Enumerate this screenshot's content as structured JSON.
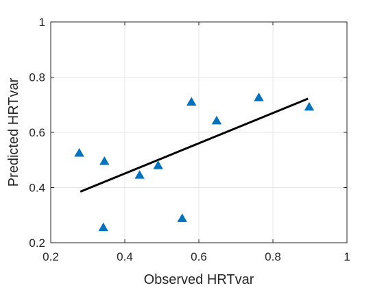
{
  "chart_data": {
    "type": "scatter",
    "title": "",
    "xlabel": "Observed HRTvar",
    "ylabel": "Predicted HRTvar",
    "xlim": [
      0.2,
      1
    ],
    "ylim": [
      0.2,
      1
    ],
    "xticks": [
      "0.2",
      "0.4",
      "0.6",
      "0.8",
      "1"
    ],
    "yticks": [
      "0.2",
      "0.4",
      "0.6",
      "0.8",
      "1"
    ],
    "grid": true,
    "marker": "triangle",
    "colors": {
      "marker": "#0072BD",
      "fit_line": "#000000",
      "grid": "#e6e6e6",
      "axis": "#262626"
    },
    "series": [
      {
        "x": [
          0.277,
          0.345,
          0.342,
          0.44,
          0.49,
          0.555,
          0.58,
          0.648,
          0.762,
          0.898
        ],
        "y": [
          0.525,
          0.495,
          0.255,
          0.445,
          0.48,
          0.288,
          0.71,
          0.642,
          0.726,
          0.692
        ]
      }
    ],
    "fit_line": {
      "x": [
        0.28,
        0.895
      ],
      "y": [
        0.385,
        0.722
      ]
    }
  }
}
